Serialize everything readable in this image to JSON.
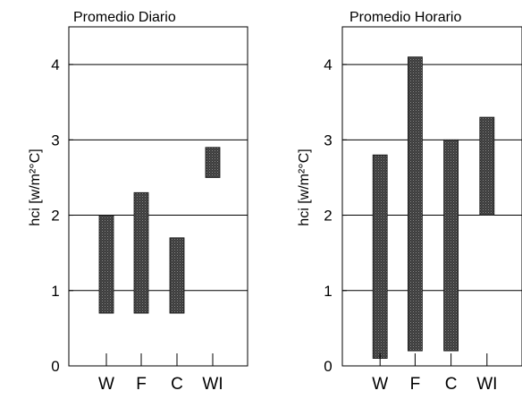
{
  "chart_data": [
    {
      "type": "bar",
      "subtype": "floating-range",
      "title": "Promedio Diario",
      "ylabel": "hci [w/m²°C]",
      "xlabel": "",
      "categories": [
        "W",
        "F",
        "C",
        "WI"
      ],
      "ranges": [
        [
          0.7,
          2.0
        ],
        [
          0.7,
          2.3
        ],
        [
          0.7,
          1.7
        ],
        [
          2.5,
          2.9
        ]
      ],
      "ylim": [
        0,
        4.5
      ],
      "yticks": [
        "0",
        "1",
        "2",
        "3",
        "4"
      ],
      "grid": "horizontal",
      "legend": "none",
      "bar_color": "#2e2e2e"
    },
    {
      "type": "bar",
      "subtype": "floating-range",
      "title": "Promedio Horario",
      "ylabel": "hci [w/m²°C]",
      "xlabel": "",
      "categories": [
        "W",
        "F",
        "C",
        "WI"
      ],
      "ranges": [
        [
          0.1,
          2.8
        ],
        [
          0.2,
          4.1
        ],
        [
          0.2,
          3.0
        ],
        [
          2.0,
          3.3
        ]
      ],
      "ylim": [
        0,
        4.5
      ],
      "yticks": [
        "0",
        "1",
        "2",
        "3",
        "4"
      ],
      "grid": "horizontal",
      "legend": "none",
      "bar_color": "#2e2e2e"
    }
  ]
}
